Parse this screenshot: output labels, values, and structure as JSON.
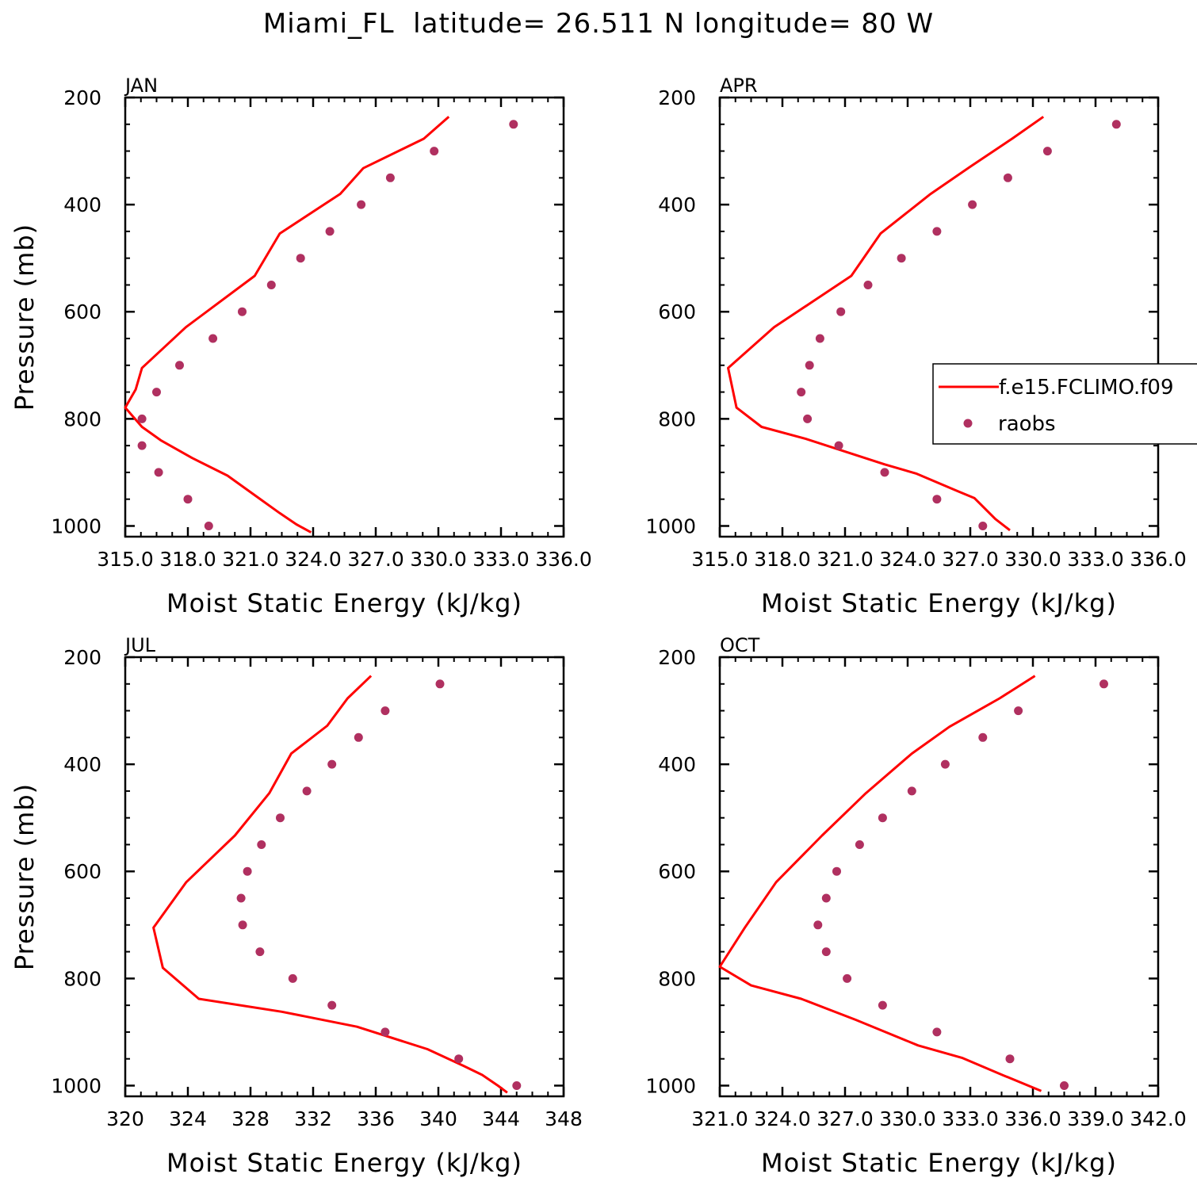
{
  "title": "Miami_FL  latitude= 26.511 N longitude= 80 W",
  "colors": {
    "model": "#ff0000",
    "obs": "#b03060",
    "axis": "#000000"
  },
  "legend": {
    "entries": [
      {
        "label": "f.e15.FCLIMO.f09",
        "style": "line",
        "color": "#ff0000"
      },
      {
        "label": "raobs",
        "style": "marker",
        "color": "#b03060"
      }
    ],
    "placement": "right-middle of APR panel"
  },
  "chart_data": [
    {
      "type": "line",
      "panel": "JAN",
      "xlabel": "Moist Static Energy (kJ/kg)",
      "ylabel": "Pressure (mb)",
      "xlim": [
        315.0,
        336.0
      ],
      "x_ticks": [
        315.0,
        318.0,
        321.0,
        324.0,
        327.0,
        330.0,
        333.0,
        336.0
      ],
      "x_tick_labels": [
        "315.0",
        "318.0",
        "321.0",
        "324.0",
        "327.0",
        "330.0",
        "333.0",
        "336.0"
      ],
      "ylim": [
        1020,
        200
      ],
      "y_ticks": [
        200,
        400,
        600,
        800,
        1000
      ],
      "y_tick_labels": [
        "200",
        "400",
        "600",
        "800",
        "1000"
      ],
      "series": [
        {
          "name": "f.e15.FCLIMO.f09",
          "kind": "line",
          "points": [
            [
              330.5,
              236
            ],
            [
              329.3,
              277
            ],
            [
              326.4,
              332
            ],
            [
              325.3,
              380
            ],
            [
              322.4,
              454
            ],
            [
              321.2,
              533
            ],
            [
              317.9,
              629
            ],
            [
              315.8,
              705
            ],
            [
              315.5,
              745
            ],
            [
              315.0,
              779
            ],
            [
              315.8,
              815
            ],
            [
              316.7,
              840
            ],
            [
              318.2,
              873
            ],
            [
              319.9,
              906
            ],
            [
              321.4,
              948
            ],
            [
              322.4,
              976
            ],
            [
              323.2,
              997
            ],
            [
              323.9,
              1012
            ]
          ]
        },
        {
          "name": "raobs",
          "kind": "scatter",
          "points": [
            [
              333.6,
              250
            ],
            [
              329.8,
              300
            ],
            [
              327.7,
              350
            ],
            [
              326.3,
              400
            ],
            [
              324.8,
              450
            ],
            [
              323.4,
              500
            ],
            [
              322.0,
              550
            ],
            [
              320.6,
              600
            ],
            [
              319.2,
              650
            ],
            [
              317.6,
              700
            ],
            [
              316.5,
              750
            ],
            [
              315.8,
              800
            ],
            [
              315.8,
              850
            ],
            [
              316.6,
              900
            ],
            [
              318.0,
              950
            ],
            [
              319.0,
              1000
            ]
          ]
        }
      ]
    },
    {
      "type": "line",
      "panel": "APR",
      "xlabel": "Moist Static Energy (kJ/kg)",
      "ylabel": "",
      "xlim": [
        315.0,
        336.0
      ],
      "x_ticks": [
        315.0,
        318.0,
        321.0,
        324.0,
        327.0,
        330.0,
        333.0,
        336.0
      ],
      "x_tick_labels": [
        "315.0",
        "318.0",
        "321.0",
        "324.0",
        "327.0",
        "330.0",
        "333.0",
        "336.0"
      ],
      "ylim": [
        1020,
        200
      ],
      "y_ticks": [
        200,
        400,
        600,
        800,
        1000
      ],
      "y_tick_labels": [
        "200",
        "400",
        "600",
        "800",
        "1000"
      ],
      "series": [
        {
          "name": "f.e15.FCLIMO.f09",
          "kind": "line",
          "points": [
            [
              330.5,
              236
            ],
            [
              329.0,
              277
            ],
            [
              327.0,
              329
            ],
            [
              325.1,
              380
            ],
            [
              322.7,
              454
            ],
            [
              321.3,
              533
            ],
            [
              317.6,
              629
            ],
            [
              315.4,
              705
            ],
            [
              315.8,
              779
            ],
            [
              317.0,
              815
            ],
            [
              319.1,
              837
            ],
            [
              322.9,
              885
            ],
            [
              324.4,
              902
            ],
            [
              326.4,
              935
            ],
            [
              327.2,
              948
            ],
            [
              328.2,
              987
            ],
            [
              328.9,
              1008
            ]
          ]
        },
        {
          "name": "raobs",
          "kind": "scatter",
          "points": [
            [
              334.0,
              250
            ],
            [
              330.7,
              300
            ],
            [
              328.8,
              350
            ],
            [
              327.1,
              400
            ],
            [
              325.4,
              450
            ],
            [
              323.7,
              500
            ],
            [
              322.1,
              550
            ],
            [
              320.8,
              600
            ],
            [
              319.8,
              650
            ],
            [
              319.3,
              700
            ],
            [
              318.9,
              750
            ],
            [
              319.2,
              800
            ],
            [
              320.7,
              850
            ],
            [
              322.9,
              900
            ],
            [
              325.4,
              950
            ],
            [
              327.6,
              1000
            ]
          ]
        }
      ]
    },
    {
      "type": "line",
      "panel": "JUL",
      "xlabel": "Moist Static Energy (kJ/kg)",
      "ylabel": "Pressure (mb)",
      "xlim": [
        320,
        348
      ],
      "x_ticks": [
        320,
        324,
        328,
        332,
        336,
        340,
        344,
        348
      ],
      "x_tick_labels": [
        "320",
        "324",
        "328",
        "332",
        "336",
        "340",
        "344",
        "348"
      ],
      "ylim": [
        1020,
        200
      ],
      "y_ticks": [
        200,
        400,
        600,
        800,
        1000
      ],
      "y_tick_labels": [
        "200",
        "400",
        "600",
        "800",
        "1000"
      ],
      "series": [
        {
          "name": "f.e15.FCLIMO.f09",
          "kind": "line",
          "points": [
            [
              335.7,
              235
            ],
            [
              334.2,
              277
            ],
            [
              332.9,
              328
            ],
            [
              330.6,
              380
            ],
            [
              329.2,
              454
            ],
            [
              327.0,
              533
            ],
            [
              323.9,
              620
            ],
            [
              321.8,
              705
            ],
            [
              322.4,
              780
            ],
            [
              324.7,
              838
            ],
            [
              330.0,
              862
            ],
            [
              334.8,
              890
            ],
            [
              339.3,
              932
            ],
            [
              341.6,
              963
            ],
            [
              342.8,
              980
            ],
            [
              343.8,
              1000
            ],
            [
              344.4,
              1013
            ]
          ]
        },
        {
          "name": "raobs",
          "kind": "scatter",
          "points": [
            [
              340.1,
              250
            ],
            [
              336.6,
              300
            ],
            [
              334.9,
              350
            ],
            [
              333.2,
              400
            ],
            [
              331.6,
              450
            ],
            [
              329.9,
              500
            ],
            [
              328.7,
              550
            ],
            [
              327.8,
              600
            ],
            [
              327.4,
              650
            ],
            [
              327.5,
              700
            ],
            [
              328.6,
              750
            ],
            [
              330.7,
              800
            ],
            [
              333.2,
              850
            ],
            [
              336.6,
              900
            ],
            [
              341.3,
              950
            ],
            [
              345.0,
              1000
            ]
          ]
        }
      ]
    },
    {
      "type": "line",
      "panel": "OCT",
      "xlabel": "Moist Static Energy (kJ/kg)",
      "ylabel": "",
      "xlim": [
        321.0,
        342.0
      ],
      "x_ticks": [
        321.0,
        324.0,
        327.0,
        330.0,
        333.0,
        336.0,
        339.0,
        342.0
      ],
      "x_tick_labels": [
        "321.0",
        "324.0",
        "327.0",
        "330.0",
        "333.0",
        "336.0",
        "339.0",
        "342.0"
      ],
      "ylim": [
        1020,
        200
      ],
      "y_ticks": [
        200,
        400,
        600,
        800,
        1000
      ],
      "y_tick_labels": [
        "200",
        "400",
        "600",
        "800",
        "1000"
      ],
      "series": [
        {
          "name": "f.e15.FCLIMO.f09",
          "kind": "line",
          "points": [
            [
              336.1,
              235
            ],
            [
              334.4,
              277
            ],
            [
              332.0,
              330
            ],
            [
              330.2,
              380
            ],
            [
              328.0,
              454
            ],
            [
              325.9,
              533
            ],
            [
              323.7,
              620
            ],
            [
              322.2,
              705
            ],
            [
              321.0,
              778
            ],
            [
              322.5,
              813
            ],
            [
              324.9,
              838
            ],
            [
              327.5,
              877
            ],
            [
              330.5,
              925
            ],
            [
              332.6,
              948
            ],
            [
              334.6,
              981
            ],
            [
              336.4,
              1010
            ]
          ]
        },
        {
          "name": "raobs",
          "kind": "scatter",
          "points": [
            [
              339.4,
              250
            ],
            [
              335.3,
              300
            ],
            [
              333.6,
              350
            ],
            [
              331.8,
              400
            ],
            [
              330.2,
              450
            ],
            [
              328.8,
              500
            ],
            [
              327.7,
              550
            ],
            [
              326.6,
              600
            ],
            [
              326.1,
              650
            ],
            [
              325.7,
              700
            ],
            [
              326.1,
              750
            ],
            [
              327.1,
              800
            ],
            [
              328.8,
              850
            ],
            [
              331.4,
              900
            ],
            [
              334.9,
              950
            ],
            [
              337.5,
              1000
            ]
          ]
        }
      ]
    }
  ]
}
